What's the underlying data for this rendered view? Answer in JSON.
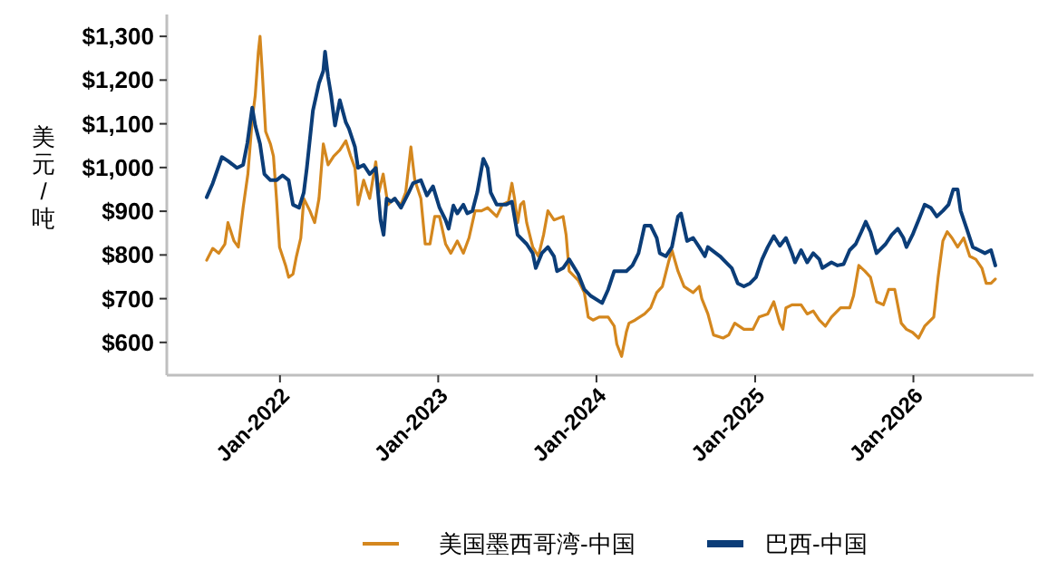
{
  "chart_data": {
    "type": "line",
    "ylabel": "美元/吨",
    "xlim": [
      "2021-04-15",
      "2026-10-05"
    ],
    "ylim": [
      525,
      1350
    ],
    "xticks": [
      {
        "value": "2022-01-01",
        "label": "Jan-2022"
      },
      {
        "value": "2023-01-01",
        "label": "Jan-2023"
      },
      {
        "value": "2024-01-01",
        "label": "Jan-2024"
      },
      {
        "value": "2025-01-01",
        "label": "Jan-2025"
      },
      {
        "value": "2026-01-01",
        "label": "Jan-2026"
      }
    ],
    "yticks": [
      {
        "value": 600,
        "label": "$600"
      },
      {
        "value": 700,
        "label": "$700"
      },
      {
        "value": 800,
        "label": "$800"
      },
      {
        "value": 900,
        "label": "$900"
      },
      {
        "value": 1000,
        "label": "$1,000"
      },
      {
        "value": 1100,
        "label": "$1,100"
      },
      {
        "value": 1200,
        "label": "$1,200"
      },
      {
        "value": 1300,
        "label": "$1,300"
      }
    ],
    "grid": false,
    "legend": "bottom",
    "marker": "none",
    "line_style": "solid",
    "series": [
      {
        "name": "美国墨西哥湾-中国",
        "color": "#d4871e",
        "x": [
          "2021-07-16",
          "2021-07-30",
          "2021-08-13",
          "2021-08-27",
          "2021-09-03",
          "2021-09-17",
          "2021-09-27",
          "2021-10-08",
          "2021-10-19",
          "2021-10-29",
          "2021-11-05",
          "2021-11-12",
          "2021-11-16",
          "2021-11-21",
          "2021-11-29",
          "2021-12-10",
          "2021-12-17",
          "2021-12-24",
          "2021-12-31",
          "2022-01-14",
          "2022-01-21",
          "2022-01-31",
          "2022-02-08",
          "2022-02-18",
          "2022-02-25",
          "2022-03-11",
          "2022-03-22",
          "2022-04-01",
          "2022-04-11",
          "2022-04-22",
          "2022-05-05",
          "2022-05-19",
          "2022-06-02",
          "2022-06-13",
          "2022-06-23",
          "2022-06-30",
          "2022-07-13",
          "2022-07-27",
          "2022-08-10",
          "2022-08-17",
          "2022-08-27",
          "2022-09-07",
          "2022-09-21",
          "2022-10-07",
          "2022-10-18",
          "2022-10-30",
          "2022-11-08",
          "2022-11-22",
          "2022-12-02",
          "2022-12-13",
          "2022-12-24",
          "2023-01-04",
          "2023-01-18",
          "2023-01-30",
          "2023-02-14",
          "2023-02-28",
          "2023-03-13",
          "2023-03-27",
          "2023-04-11",
          "2023-04-25",
          "2023-05-16",
          "2023-05-29",
          "2023-06-12",
          "2023-06-20",
          "2023-06-26",
          "2023-07-03",
          "2023-07-10",
          "2023-07-17",
          "2023-07-24",
          "2023-08-07",
          "2023-08-20",
          "2023-09-01",
          "2023-09-11",
          "2023-09-25",
          "2023-10-16",
          "2023-10-23",
          "2023-10-30",
          "2023-11-20",
          "2023-12-04",
          "2023-12-13",
          "2023-12-24",
          "2024-01-07",
          "2024-01-28",
          "2024-02-11",
          "2024-02-17",
          "2024-02-28",
          "2024-03-10",
          "2024-03-16",
          "2024-03-30",
          "2024-04-21",
          "2024-05-05",
          "2024-05-19",
          "2024-06-01",
          "2024-06-15",
          "2024-06-23",
          "2024-07-07",
          "2024-07-21",
          "2024-08-11",
          "2024-08-25",
          "2024-08-31",
          "2024-09-14",
          "2024-09-27",
          "2024-10-19",
          "2024-11-01",
          "2024-11-15",
          "2024-12-06",
          "2024-12-27",
          "2025-01-10",
          "2025-01-30",
          "2025-02-13",
          "2025-02-27",
          "2025-03-06",
          "2025-03-13",
          "2025-03-27",
          "2025-04-17",
          "2025-05-01",
          "2025-05-15",
          "2025-05-29",
          "2025-06-12",
          "2025-06-26",
          "2025-07-17",
          "2025-08-07",
          "2025-08-16",
          "2025-08-28",
          "2025-09-11",
          "2025-09-24",
          "2025-10-08",
          "2025-10-24",
          "2025-11-05",
          "2025-11-19",
          "2025-12-04",
          "2025-12-16",
          "2025-12-30",
          "2026-01-13",
          "2026-01-27",
          "2026-02-17",
          "2026-02-27",
          "2026-03-10",
          "2026-03-20",
          "2026-03-31",
          "2026-04-13",
          "2026-04-27",
          "2026-05-11",
          "2026-05-25",
          "2026-06-08",
          "2026-06-18",
          "2026-06-29",
          "2026-07-09"
        ],
        "values": [
          788,
          815,
          804,
          825,
          874,
          832,
          818,
          908,
          985,
          1110,
          1165,
          1263,
          1300,
          1221,
          1082,
          1054,
          1026,
          929,
          818,
          776,
          749,
          756,
          797,
          839,
          929,
          901,
          874,
          929,
          1054,
          1006,
          1026,
          1040,
          1061,
          1026,
          999,
          915,
          971,
          929,
          1013,
          943,
          985,
          915,
          929,
          915,
          943,
          1047,
          971,
          929,
          825,
          825,
          888,
          888,
          825,
          804,
          832,
          804,
          839,
          901,
          901,
          908,
          888,
          915,
          922,
          964,
          929,
          874,
          915,
          922,
          874,
          818,
          797,
          846,
          901,
          880,
          888,
          846,
          763,
          742,
          714,
          658,
          651,
          658,
          658,
          637,
          596,
          568,
          624,
          644,
          651,
          665,
          679,
          714,
          728,
          783,
          811,
          763,
          728,
          714,
          728,
          700,
          665,
          617,
          610,
          617,
          644,
          630,
          630,
          658,
          665,
          693,
          644,
          630,
          679,
          686,
          686,
          665,
          672,
          651,
          637,
          658,
          679,
          679,
          707,
          776,
          763,
          749,
          693,
          686,
          721,
          721,
          644,
          630,
          623,
          610,
          637,
          658,
          749,
          832,
          853,
          839,
          818,
          839,
          797,
          790,
          770,
          735,
          735,
          745
        ]
      },
      {
        "name": "巴西-中国",
        "color": "#0b3d78",
        "x": [
          "2021-07-16",
          "2021-07-30",
          "2021-08-20",
          "2021-09-03",
          "2021-09-24",
          "2021-10-08",
          "2021-10-18",
          "2021-10-29",
          "2021-11-05",
          "2021-11-16",
          "2021-11-26",
          "2021-12-10",
          "2021-12-24",
          "2022-01-07",
          "2022-01-21",
          "2022-01-31",
          "2022-02-14",
          "2022-02-25",
          "2022-03-04",
          "2022-03-18",
          "2022-04-01",
          "2022-04-11",
          "2022-04-15",
          "2022-04-22",
          "2022-04-29",
          "2022-05-08",
          "2022-05-19",
          "2022-06-02",
          "2022-06-09",
          "2022-06-23",
          "2022-06-30",
          "2022-07-13",
          "2022-07-27",
          "2022-08-10",
          "2022-08-21",
          "2022-08-28",
          "2022-09-04",
          "2022-09-14",
          "2022-09-23",
          "2022-10-07",
          "2022-10-25",
          "2022-11-04",
          "2022-11-22",
          "2022-12-06",
          "2022-12-20",
          "2023-01-04",
          "2023-01-18",
          "2023-01-25",
          "2023-02-05",
          "2023-02-14",
          "2023-02-28",
          "2023-03-09",
          "2023-03-21",
          "2023-04-01",
          "2023-04-15",
          "2023-04-25",
          "2023-05-02",
          "2023-05-16",
          "2023-06-06",
          "2023-06-20",
          "2023-07-03",
          "2023-07-24",
          "2023-08-07",
          "2023-08-14",
          "2023-08-28",
          "2023-09-11",
          "2023-09-25",
          "2023-10-02",
          "2023-10-16",
          "2023-10-30",
          "2023-11-20",
          "2023-12-04",
          "2023-12-18",
          "2024-01-14",
          "2024-01-28",
          "2024-02-11",
          "2024-03-10",
          "2024-03-24",
          "2024-04-07",
          "2024-04-21",
          "2024-05-05",
          "2024-05-19",
          "2024-05-26",
          "2024-06-09",
          "2024-06-23",
          "2024-07-07",
          "2024-07-14",
          "2024-07-28",
          "2024-08-11",
          "2024-08-25",
          "2024-09-07",
          "2024-09-14",
          "2024-10-12",
          "2024-10-26",
          "2024-11-08",
          "2024-11-22",
          "2024-12-06",
          "2024-12-20",
          "2025-01-03",
          "2025-01-17",
          "2025-01-30",
          "2025-02-13",
          "2025-02-27",
          "2025-03-13",
          "2025-03-27",
          "2025-04-03",
          "2025-04-17",
          "2025-05-01",
          "2025-05-15",
          "2025-05-29",
          "2025-06-05",
          "2025-06-26",
          "2025-07-10",
          "2025-07-24",
          "2025-08-07",
          "2025-08-21",
          "2025-09-03",
          "2025-09-13",
          "2025-09-24",
          "2025-10-08",
          "2025-10-29",
          "2025-11-12",
          "2025-11-26",
          "2025-12-09",
          "2025-12-16",
          "2025-12-30",
          "2026-01-13",
          "2026-01-27",
          "2026-02-10",
          "2026-02-24",
          "2026-03-10",
          "2026-03-23",
          "2026-04-03",
          "2026-04-13",
          "2026-04-20",
          "2026-05-04",
          "2026-05-18",
          "2026-06-01",
          "2026-06-15",
          "2026-06-29",
          "2026-07-09"
        ],
        "values": [
          932,
          964,
          1024,
          1015,
          999,
          1006,
          1057,
          1137,
          1096,
          1054,
          985,
          971,
          971,
          982,
          971,
          915,
          908,
          943,
          999,
          1130,
          1193,
          1221,
          1265,
          1207,
          1165,
          1096,
          1154,
          1103,
          1089,
          1047,
          999,
          1006,
          985,
          999,
          880,
          846,
          929,
          922,
          929,
          908,
          943,
          964,
          971,
          936,
          957,
          908,
          880,
          860,
          913,
          895,
          915,
          895,
          901,
          943,
          1020,
          999,
          943,
          915,
          915,
          922,
          846,
          825,
          804,
          770,
          804,
          818,
          797,
          763,
          770,
          790,
          756,
          721,
          707,
          690,
          721,
          763,
          763,
          776,
          804,
          867,
          867,
          839,
          804,
          797,
          818,
          888,
          895,
          832,
          839,
          818,
          797,
          818,
          797,
          783,
          770,
          735,
          728,
          735,
          749,
          790,
          818,
          843,
          821,
          839,
          804,
          783,
          811,
          783,
          804,
          790,
          770,
          783,
          776,
          779,
          811,
          825,
          853,
          876,
          853,
          804,
          825,
          846,
          860,
          839,
          818,
          846,
          880,
          915,
          908,
          888,
          901,
          915,
          950,
          950,
          901,
          860,
          818,
          811,
          804,
          811,
          776
        ]
      }
    ]
  }
}
